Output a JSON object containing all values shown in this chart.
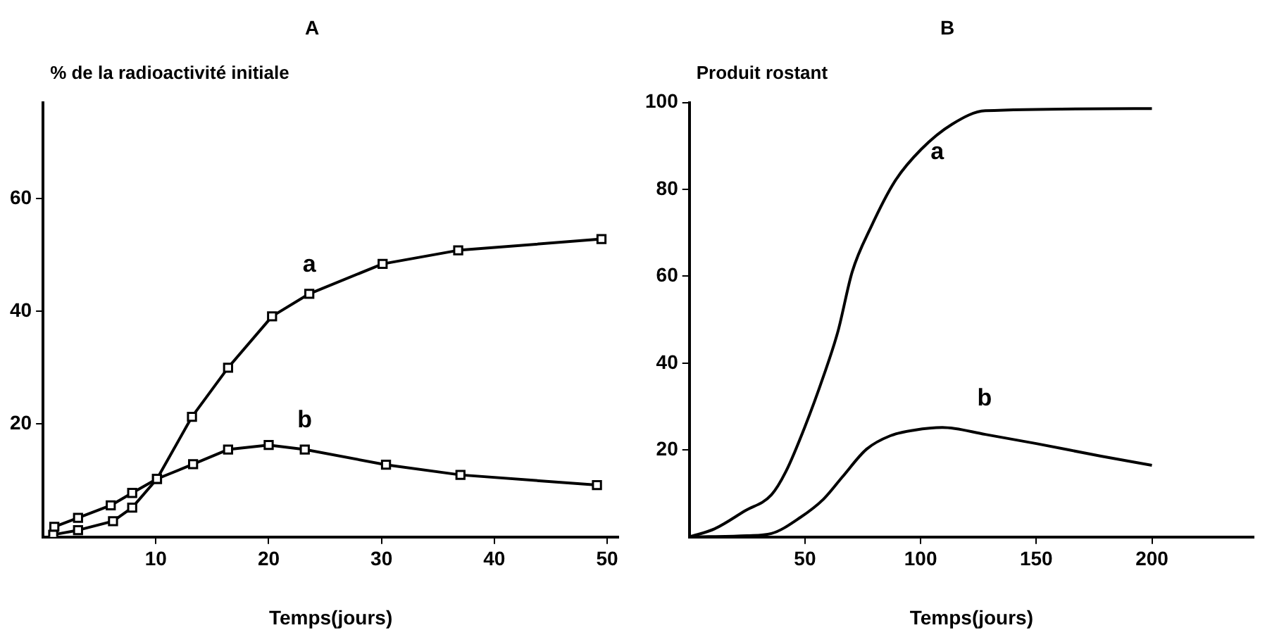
{
  "chart_data": [
    {
      "type": "line",
      "title": "A",
      "ylabel": "% de la radioactivité initiale",
      "xlabel": "Temps(jours)",
      "xlim": [
        0,
        51
      ],
      "ylim": [
        0,
        77
      ],
      "xticks": [
        10,
        20,
        30,
        40,
        50
      ],
      "yticks": [
        20,
        40,
        60
      ],
      "grid": false,
      "legend": false,
      "marker": "square",
      "line_style": "solid",
      "series": [
        {
          "name": "a",
          "color": "#000000",
          "x": [
            0.9,
            3.1,
            6.2,
            7.9,
            10.1,
            13.2,
            16.4,
            20.3,
            23.6,
            30.1,
            36.8,
            49.5
          ],
          "values": [
            0.4,
            1.2,
            2.8,
            5.2,
            10.3,
            21.3,
            30,
            39.1,
            43.1,
            48.4,
            50.8,
            52.8
          ]
        },
        {
          "name": "b",
          "color": "#000000",
          "x": [
            1,
            3.1,
            6,
            7.9,
            10.1,
            13.3,
            16.4,
            20,
            23.2,
            30.4,
            37,
            49.1
          ],
          "values": [
            1.8,
            3.4,
            5.6,
            7.8,
            10.3,
            12.9,
            15.5,
            16.3,
            15.5,
            12.8,
            11,
            9.2
          ]
        }
      ]
    },
    {
      "type": "line",
      "title": "B",
      "ylabel": "Produit rostant",
      "xlabel": "Temps(jours)",
      "xlim": [
        0,
        244
      ],
      "ylim": [
        0,
        100
      ],
      "xticks": [
        50,
        100,
        150,
        200
      ],
      "yticks": [
        20,
        40,
        60,
        80,
        100
      ],
      "grid": false,
      "legend": false,
      "marker": "none",
      "line_style": "solid",
      "series": [
        {
          "name": "a",
          "color": "#000000",
          "x": [
            0,
            11,
            24,
            35.5,
            41.7,
            50,
            58,
            64.3,
            70.4,
            78.6,
            88.9,
            100.2,
            113.6,
            128,
            200
          ],
          "values": [
            0,
            1.9,
            6,
            9.7,
            15,
            25.4,
            37,
            47.4,
            61,
            71.4,
            81.9,
            89.2,
            95,
            98.1,
            98.6
          ]
        },
        {
          "name": "b",
          "color": "#000000",
          "x": [
            0,
            25,
            35.5,
            48,
            58,
            66.3,
            76.6,
            86.9,
            97.4,
            109.4,
            128,
            150,
            178,
            200
          ],
          "values": [
            0,
            0.3,
            0.8,
            4.5,
            8.7,
            13.9,
            20.2,
            23.3,
            24.6,
            25.2,
            23.6,
            21.5,
            18.6,
            16.5
          ]
        }
      ]
    }
  ]
}
